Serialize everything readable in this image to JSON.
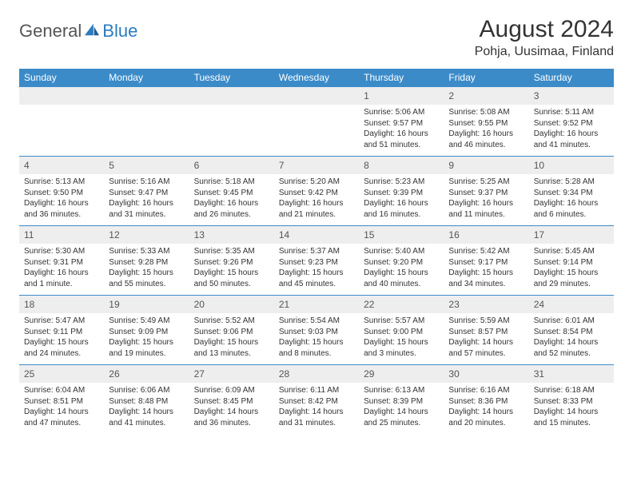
{
  "logo": {
    "general": "General",
    "blue": "Blue"
  },
  "title": "August 2024",
  "location": "Pohja, Uusimaa, Finland",
  "colors": {
    "header_bg": "#3b8bc9",
    "header_text": "#ffffff",
    "daynum_bg": "#eeeeee",
    "border": "#3b8bc9",
    "text": "#333333",
    "logo_gray": "#555555",
    "logo_blue": "#2b7bbf"
  },
  "typography": {
    "title_fontsize": 30,
    "location_fontsize": 16,
    "header_fontsize": 12,
    "daynum_fontsize": 12,
    "body_fontsize": 10
  },
  "weekdays": [
    "Sunday",
    "Monday",
    "Tuesday",
    "Wednesday",
    "Thursday",
    "Friday",
    "Saturday"
  ],
  "weeks": [
    [
      null,
      null,
      null,
      null,
      {
        "n": "1",
        "sr": "Sunrise: 5:06 AM",
        "ss": "Sunset: 9:57 PM",
        "dl": "Daylight: 16 hours and 51 minutes."
      },
      {
        "n": "2",
        "sr": "Sunrise: 5:08 AM",
        "ss": "Sunset: 9:55 PM",
        "dl": "Daylight: 16 hours and 46 minutes."
      },
      {
        "n": "3",
        "sr": "Sunrise: 5:11 AM",
        "ss": "Sunset: 9:52 PM",
        "dl": "Daylight: 16 hours and 41 minutes."
      }
    ],
    [
      {
        "n": "4",
        "sr": "Sunrise: 5:13 AM",
        "ss": "Sunset: 9:50 PM",
        "dl": "Daylight: 16 hours and 36 minutes."
      },
      {
        "n": "5",
        "sr": "Sunrise: 5:16 AM",
        "ss": "Sunset: 9:47 PM",
        "dl": "Daylight: 16 hours and 31 minutes."
      },
      {
        "n": "6",
        "sr": "Sunrise: 5:18 AM",
        "ss": "Sunset: 9:45 PM",
        "dl": "Daylight: 16 hours and 26 minutes."
      },
      {
        "n": "7",
        "sr": "Sunrise: 5:20 AM",
        "ss": "Sunset: 9:42 PM",
        "dl": "Daylight: 16 hours and 21 minutes."
      },
      {
        "n": "8",
        "sr": "Sunrise: 5:23 AM",
        "ss": "Sunset: 9:39 PM",
        "dl": "Daylight: 16 hours and 16 minutes."
      },
      {
        "n": "9",
        "sr": "Sunrise: 5:25 AM",
        "ss": "Sunset: 9:37 PM",
        "dl": "Daylight: 16 hours and 11 minutes."
      },
      {
        "n": "10",
        "sr": "Sunrise: 5:28 AM",
        "ss": "Sunset: 9:34 PM",
        "dl": "Daylight: 16 hours and 6 minutes."
      }
    ],
    [
      {
        "n": "11",
        "sr": "Sunrise: 5:30 AM",
        "ss": "Sunset: 9:31 PM",
        "dl": "Daylight: 16 hours and 1 minute."
      },
      {
        "n": "12",
        "sr": "Sunrise: 5:33 AM",
        "ss": "Sunset: 9:28 PM",
        "dl": "Daylight: 15 hours and 55 minutes."
      },
      {
        "n": "13",
        "sr": "Sunrise: 5:35 AM",
        "ss": "Sunset: 9:26 PM",
        "dl": "Daylight: 15 hours and 50 minutes."
      },
      {
        "n": "14",
        "sr": "Sunrise: 5:37 AM",
        "ss": "Sunset: 9:23 PM",
        "dl": "Daylight: 15 hours and 45 minutes."
      },
      {
        "n": "15",
        "sr": "Sunrise: 5:40 AM",
        "ss": "Sunset: 9:20 PM",
        "dl": "Daylight: 15 hours and 40 minutes."
      },
      {
        "n": "16",
        "sr": "Sunrise: 5:42 AM",
        "ss": "Sunset: 9:17 PM",
        "dl": "Daylight: 15 hours and 34 minutes."
      },
      {
        "n": "17",
        "sr": "Sunrise: 5:45 AM",
        "ss": "Sunset: 9:14 PM",
        "dl": "Daylight: 15 hours and 29 minutes."
      }
    ],
    [
      {
        "n": "18",
        "sr": "Sunrise: 5:47 AM",
        "ss": "Sunset: 9:11 PM",
        "dl": "Daylight: 15 hours and 24 minutes."
      },
      {
        "n": "19",
        "sr": "Sunrise: 5:49 AM",
        "ss": "Sunset: 9:09 PM",
        "dl": "Daylight: 15 hours and 19 minutes."
      },
      {
        "n": "20",
        "sr": "Sunrise: 5:52 AM",
        "ss": "Sunset: 9:06 PM",
        "dl": "Daylight: 15 hours and 13 minutes."
      },
      {
        "n": "21",
        "sr": "Sunrise: 5:54 AM",
        "ss": "Sunset: 9:03 PM",
        "dl": "Daylight: 15 hours and 8 minutes."
      },
      {
        "n": "22",
        "sr": "Sunrise: 5:57 AM",
        "ss": "Sunset: 9:00 PM",
        "dl": "Daylight: 15 hours and 3 minutes."
      },
      {
        "n": "23",
        "sr": "Sunrise: 5:59 AM",
        "ss": "Sunset: 8:57 PM",
        "dl": "Daylight: 14 hours and 57 minutes."
      },
      {
        "n": "24",
        "sr": "Sunrise: 6:01 AM",
        "ss": "Sunset: 8:54 PM",
        "dl": "Daylight: 14 hours and 52 minutes."
      }
    ],
    [
      {
        "n": "25",
        "sr": "Sunrise: 6:04 AM",
        "ss": "Sunset: 8:51 PM",
        "dl": "Daylight: 14 hours and 47 minutes."
      },
      {
        "n": "26",
        "sr": "Sunrise: 6:06 AM",
        "ss": "Sunset: 8:48 PM",
        "dl": "Daylight: 14 hours and 41 minutes."
      },
      {
        "n": "27",
        "sr": "Sunrise: 6:09 AM",
        "ss": "Sunset: 8:45 PM",
        "dl": "Daylight: 14 hours and 36 minutes."
      },
      {
        "n": "28",
        "sr": "Sunrise: 6:11 AM",
        "ss": "Sunset: 8:42 PM",
        "dl": "Daylight: 14 hours and 31 minutes."
      },
      {
        "n": "29",
        "sr": "Sunrise: 6:13 AM",
        "ss": "Sunset: 8:39 PM",
        "dl": "Daylight: 14 hours and 25 minutes."
      },
      {
        "n": "30",
        "sr": "Sunrise: 6:16 AM",
        "ss": "Sunset: 8:36 PM",
        "dl": "Daylight: 14 hours and 20 minutes."
      },
      {
        "n": "31",
        "sr": "Sunrise: 6:18 AM",
        "ss": "Sunset: 8:33 PM",
        "dl": "Daylight: 14 hours and 15 minutes."
      }
    ]
  ]
}
